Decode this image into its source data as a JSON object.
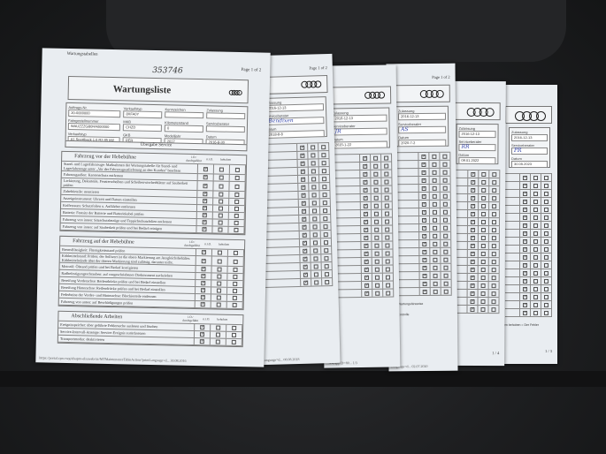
{
  "p1": {
    "header_left": "Wartungstabellen",
    "page": "Page 1 of 2",
    "handwritten_number": "353746",
    "title": "Wartungsliste",
    "fields": [
      {
        "label": "Auftrags-Nr.",
        "value": "20-0000000"
      },
      {
        "label": "Fahrgestellnummer",
        "value": "WAUZZZGB0HA000000"
      },
      {
        "label": "Verkaufstyp",
        "value": "A1 Sportback 1.0 R3 85 kW"
      },
      {
        "label": "Verkaufstyp",
        "value": "8XFA0Y"
      },
      {
        "label": "MKB",
        "value": "CHZD"
      },
      {
        "label": "GKB",
        "value": "RER"
      },
      {
        "label": "Kennzeichen",
        "value": ""
      },
      {
        "label": "Kilometerstand",
        "value": "0"
      },
      {
        "label": "Modelljahr",
        "value": "2017"
      },
      {
        "label": "Zulassung",
        "value": ""
      },
      {
        "label": "Serviceberater",
        "value": ""
      },
      {
        "label": "Datum",
        "value": "2016-8-30"
      }
    ],
    "service_label": "Übergabe Service",
    "col_ok": "i.O./ durchgeführt",
    "col_nok": "n.i.O.",
    "col_fixed": "behoben",
    "sections": [
      {
        "title": "Fahrzeug vor der Hebebühne",
        "rows": [
          "Stand- und Lagerfahrzeuge: Maßnahmen der Wartungstabelle für Stand- und Lagerfahrzeuge unter „Vor der Fahrzeugauslieferung an den Kunden\" beachten",
          "Fahrzeugaußen: Kantenschutz entfernen",
          "Lackierung, Dekorteile, Fensterscheiben und Scheibenwischerblätter auf Sauberkeit prüfen",
          "Zubehörteile: montieren",
          "Anzeigeinstrument: Uhrzeit und Datum einstellen",
          "Kofferraum: Schutzfolien u. Aufkleber entfernen",
          "Batterie: Festsitz der Batterie und Batteriekabel prüfen",
          "Fahrzeug von innen: Sitzschutzbezüge und Teppichschutzfolien entfernen",
          "Fahrzeug von innen: auf Sauberkeit prüfen und bei Bedarf reinigen"
        ]
      },
      {
        "title": "Fahrzeug auf der Hebebühne",
        "rows": [
          "Bremsflüssigkeit: Flüssigkeitsstand prüfen",
          "Kühlmittelstand: Prüfen; der Sollwert ist die obere Markierung am Ausgleichsbehälter. Kühlmittelstände über der oberen Markierung sind zulässig, darunter nicht.",
          "Motoröl: Ölstand prüfen und bei Bedarf korrigieren",
          "Radbefestigungsschrauben: auf vorgeschriebenes Drehmoment nachziehen",
          "Bereifung Vorderachse: Reifendrücke prüfen und bei Bedarf einstellen",
          "Bereifung Hinterachse: Reifendrücke prüfen und bei Bedarf einstellen",
          "Federbeine der Vorder- und Hinterachse: Blockierteile entfernen",
          "Fahrzeug von unten: auf Beschädigungen prüfen"
        ]
      },
      {
        "title": "Abschließende Arbeiten",
        "rows": [
          "Ereignisspeicher: über geführte Fehlersuche auslesen und löschen",
          "Service-Intervall-Anzeige: Service-Ereignis zurücksetzen",
          "Transportmodus: deaktivieren"
        ]
      }
    ],
    "footer": "https://portal.cpn.vwg/elsapro-elsaweb/ctr/MTMaintenanceTableAction?printLanguage=d...   30.08.2016"
  },
  "others": [
    {
      "page": "Page 1 of 2",
      "zulassung_label": "Zulassung",
      "zulassung": "2016-12-13",
      "berater_label": "Serviceberater",
      "berater": "Bendixen",
      "datum_label": "Datum",
      "datum": "2018-8-8",
      "footer": "Language=d...  08.08.2018"
    },
    {
      "page": "",
      "zulassung_label": "Zulassung",
      "zulassung": "2016-12-13",
      "berater_label": "Serviceberater",
      "berater": "JR",
      "datum_label": "Datum",
      "datum": "2020-1-22",
      "footer": "...504AppID=80...  1/3"
    },
    {
      "page": "Page 1 of 2",
      "zulassung_label": "Zulassung",
      "zulassung": "2016-12-13",
      "berater_label": "Serviceberater",
      "berater": "AS",
      "datum_label": "Datum",
      "datum": "2020-7-2",
      "footer": "Language=d...  02.07.2020",
      "note1": "Ihre Wartungshinweise",
      "note2": "Endkontrolle"
    },
    {
      "page": "1 / 4",
      "zulassung_label": "Zulassung",
      "zulassung": "2016-12-13",
      "berater_label": "Serviceberater",
      "berater": "RR",
      "datum_label": "Datum",
      "datum": "09.01.2022",
      "footer": ""
    },
    {
      "page": "1 / 3",
      "zulassung_label": "Zulassung",
      "zulassung": "2016-12-13",
      "berater_label": "Serviceberater",
      "berater": "PR",
      "datum_label": "Datum",
      "datum": "30.05.2023",
      "footer": "",
      "note1": "ten behoben = Der Fehler"
    }
  ],
  "colors": {
    "paper": "#e9edf1",
    "seat": "#232426",
    "ink": "#3344aa"
  }
}
